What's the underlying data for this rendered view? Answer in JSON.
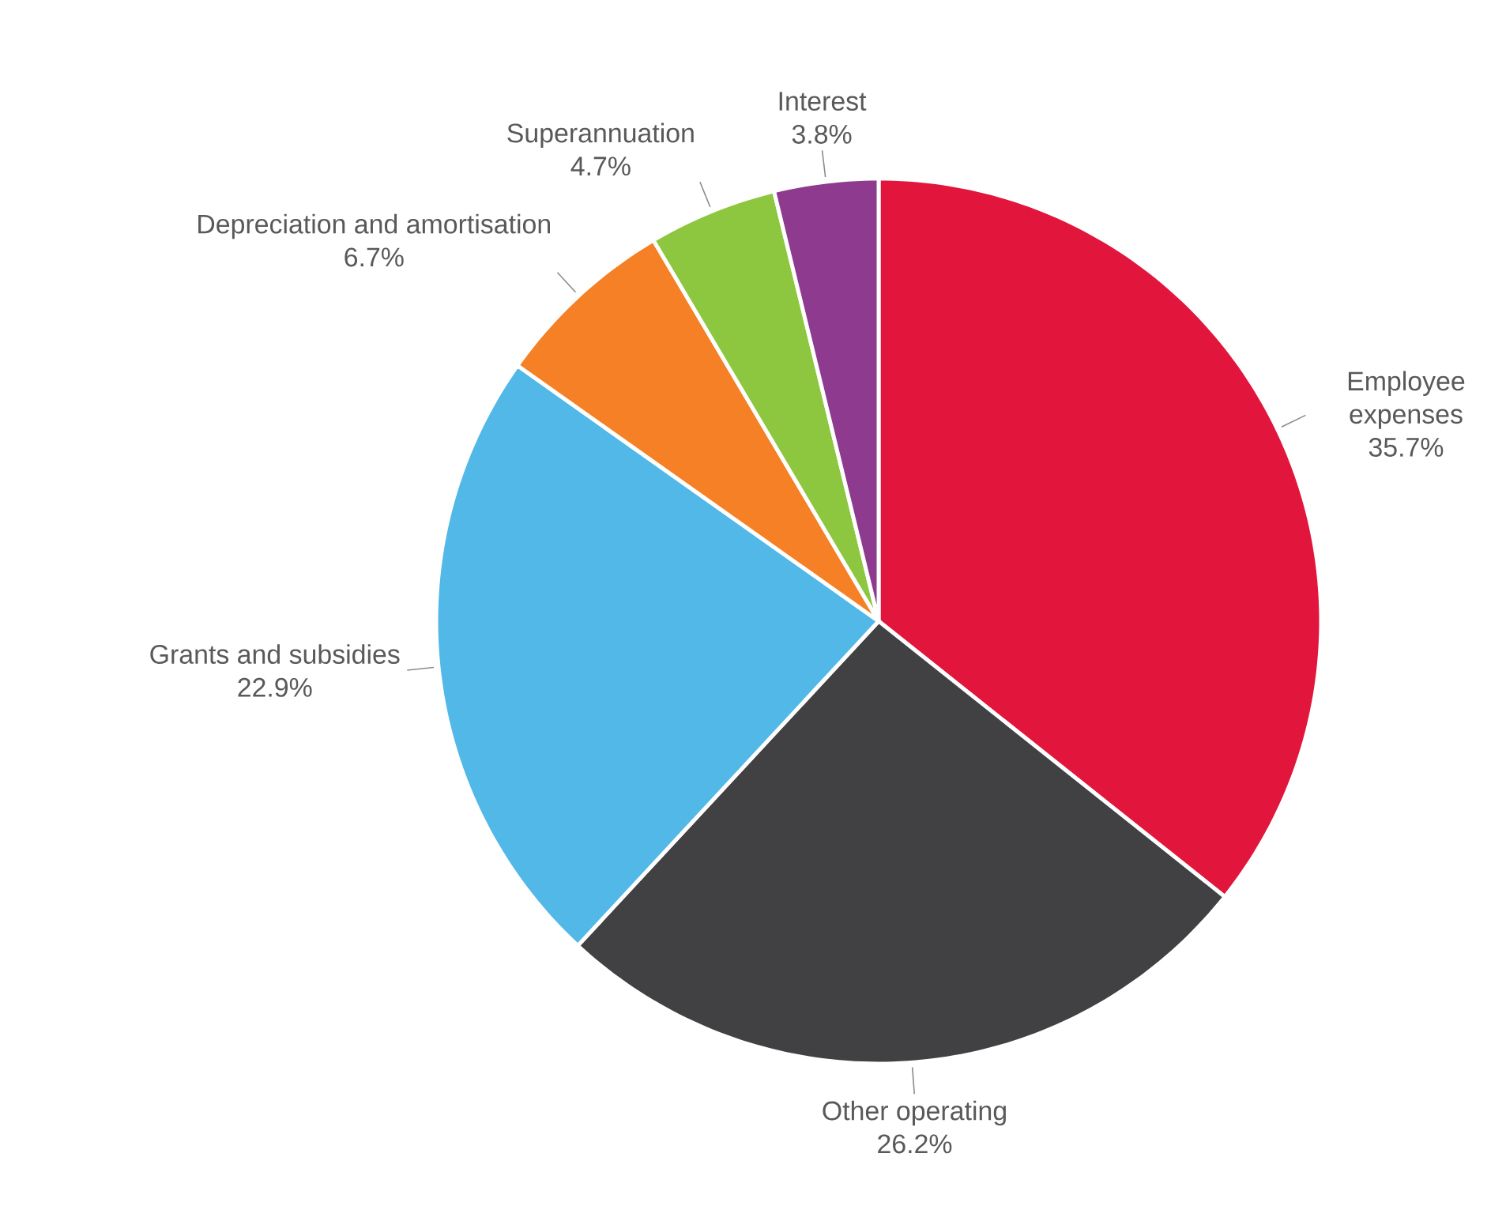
{
  "chart_data": {
    "type": "pie",
    "categories": [
      "Employee expenses",
      "Other operating",
      "Grants and subsidies",
      "Depreciation and amortisation",
      "Superannuation",
      "Interest"
    ],
    "values": [
      35.7,
      26.2,
      22.9,
      6.7,
      4.7,
      3.8
    ],
    "value_labels": [
      "35.7%",
      "26.2%",
      "22.9%",
      "6.7%",
      "4.7%",
      "3.8%"
    ],
    "colors": [
      "#e2163c",
      "#414042",
      "#52b8e8",
      "#f58025",
      "#8dc63f",
      "#8e3a8e"
    ]
  }
}
